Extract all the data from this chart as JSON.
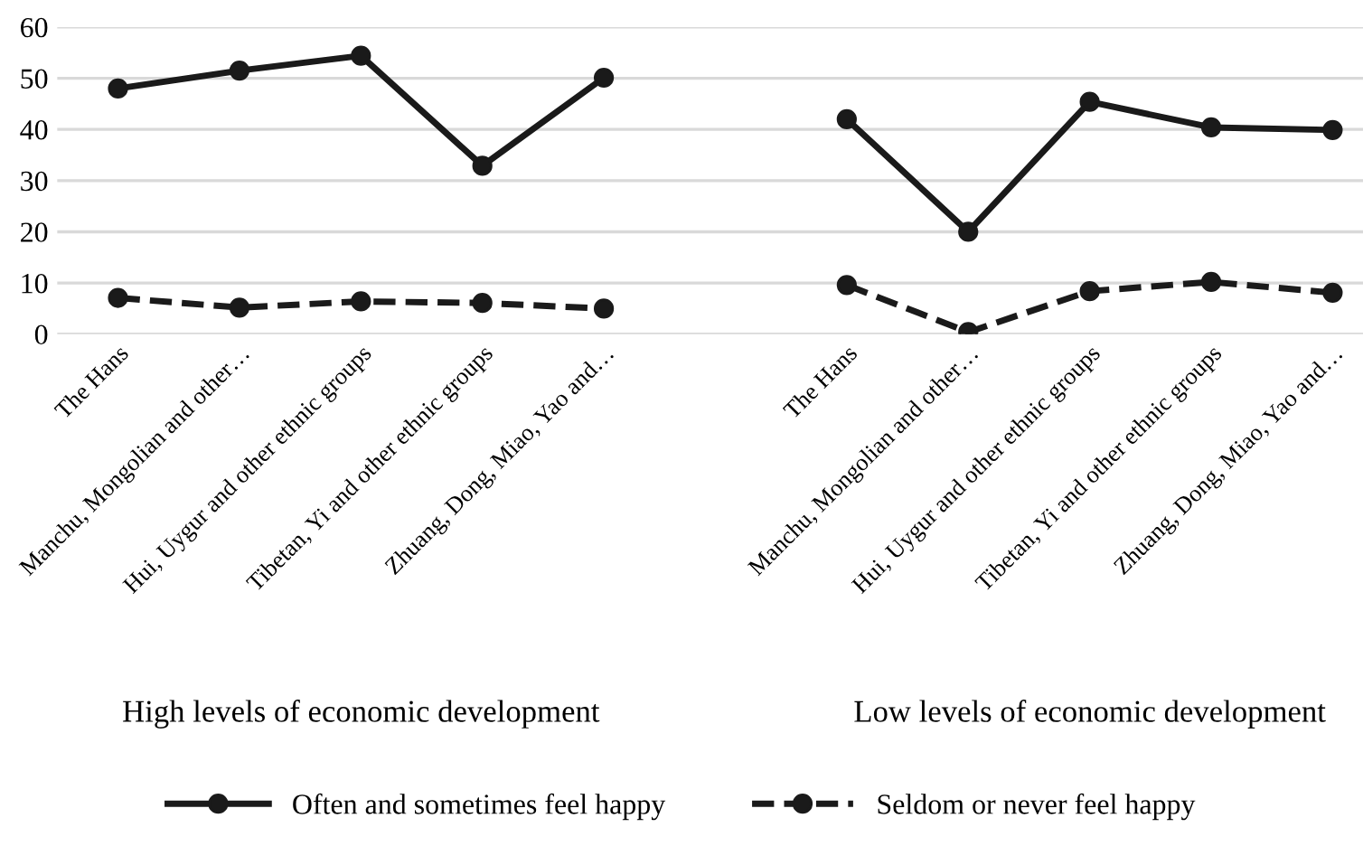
{
  "chart_data": {
    "type": "line",
    "categories": [
      "The Hans",
      "Manchu, Mongolian and other…",
      "Hui, Uygur and other ethnic groups",
      "Tibetan, Yi and other ethnic groups",
      "Zhuang, Dong, Miao, Yao and…",
      null,
      "The Hans",
      "Manchu, Mongolian and other…",
      "Hui, Uygur and other ethnic groups",
      "Tibetan, Yi and other ethnic groups",
      "Zhuang, Dong, Miao, Yao and…"
    ],
    "series": [
      {
        "name": "Often and sometimes feel happy",
        "color": "#1a1a1a",
        "line_style": "solid",
        "values": [
          48.0,
          51.5,
          54.4,
          32.9,
          50.1,
          null,
          42.0,
          20.0,
          45.4,
          40.4,
          39.9
        ]
      },
      {
        "name": "Seldom or never feel happy",
        "color": "#1a1a1a",
        "line_style": "dashed",
        "values": [
          7.1,
          5.2,
          6.4,
          6.1,
          5.0,
          null,
          9.6,
          0.4,
          8.4,
          10.2,
          8.1
        ]
      }
    ],
    "ylim": [
      0,
      60
    ],
    "yticks": [
      0,
      10,
      20,
      30,
      40,
      50,
      60
    ],
    "grid": "y",
    "marker": "circle",
    "legend": "bottom",
    "annotations": [
      "High levels of economic development",
      "Low levels of economic development"
    ]
  }
}
